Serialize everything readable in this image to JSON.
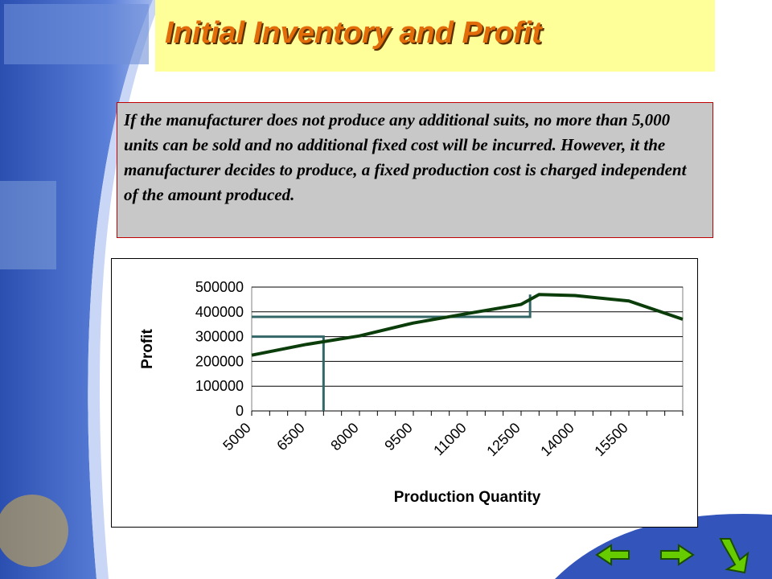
{
  "slide": {
    "title": "Initial Inventory and Profit",
    "body": "If the manufacturer does not produce any additional  suits, no more than 5,000 units can be sold and no additional fixed cost will be incurred.  However, it the manufacturer decides to produce, a fixed production cost is charged independent of the amount produced."
  },
  "nav": {
    "back": "back-arrow-icon",
    "forward": "forward-arrow-icon",
    "exit": "return-arrow-icon"
  },
  "colors": {
    "curve": "#0b3d0b",
    "guide": "#336666",
    "title": "#e36c0a",
    "titlebox": "#ffff99",
    "band": "#3355bb"
  },
  "chart_data": {
    "type": "line",
    "xlabel": "Production Quantity",
    "ylabel": "Profit",
    "x_ticks": [
      "5000",
      "6500",
      "8000",
      "9500",
      "11000",
      "12500",
      "14000",
      "15500"
    ],
    "y_ticks": [
      "0",
      "100000",
      "200000",
      "300000",
      "400000",
      "500000"
    ],
    "xlim": [
      5000,
      17000
    ],
    "ylim": [
      0,
      500000
    ],
    "grid": "horizontal",
    "series": [
      {
        "x": [
          5000,
          6500,
          8000,
          9500,
          11000,
          12500,
          13000,
          14000,
          15500,
          17000
        ],
        "values": [
          225000,
          268000,
          303000,
          355000,
          393000,
          430000,
          470000,
          466000,
          444000,
          370000
        ]
      }
    ],
    "guides": [
      {
        "x": 7000,
        "y": 300000
      },
      {
        "x": 12750,
        "y": 380000
      }
    ]
  }
}
